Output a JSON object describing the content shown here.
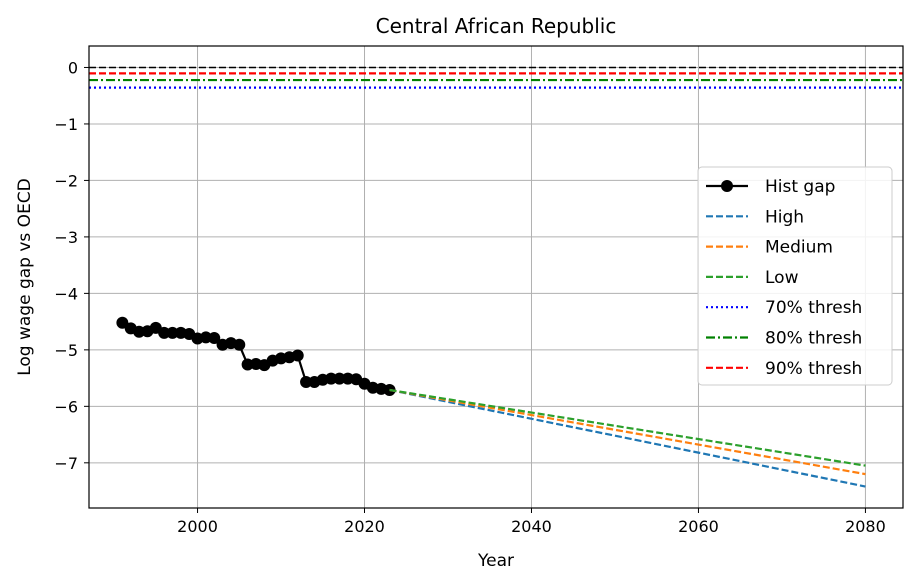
{
  "chart_data": {
    "type": "line",
    "title": "Central African Republic",
    "xlabel": "Year",
    "ylabel": "Log wage gap vs OECD",
    "xlim": [
      1987,
      2084.5
    ],
    "ylim": [
      -7.8,
      0.38
    ],
    "xticks": [
      2000,
      2020,
      2040,
      2060,
      2080
    ],
    "yticks": [
      0,
      -1,
      -2,
      -3,
      -4,
      -5,
      -6,
      -7
    ],
    "grid": true,
    "legend_position": "center-right",
    "series": [
      {
        "name": "Hist gap",
        "color": "#000000",
        "style": "solid-marker",
        "x": [
          1991,
          1992,
          1993,
          1994,
          1995,
          1996,
          1997,
          1998,
          1999,
          2000,
          2001,
          2002,
          2003,
          2004,
          2005,
          2006,
          2007,
          2008,
          2009,
          2010,
          2011,
          2012,
          2013,
          2014,
          2015,
          2016,
          2017,
          2018,
          2019,
          2020,
          2021,
          2022,
          2023
        ],
        "y": [
          -4.52,
          -4.62,
          -4.68,
          -4.67,
          -4.61,
          -4.7,
          -4.7,
          -4.7,
          -4.72,
          -4.8,
          -4.78,
          -4.79,
          -4.91,
          -4.88,
          -4.91,
          -5.26,
          -5.25,
          -5.27,
          -5.19,
          -5.15,
          -5.13,
          -5.1,
          -5.57,
          -5.57,
          -5.53,
          -5.51,
          -5.51,
          -5.51,
          -5.52,
          -5.6,
          -5.67,
          -5.69,
          -5.71
        ]
      },
      {
        "name": "High",
        "color": "#1f77b4",
        "style": "dashed",
        "x": [
          2023,
          2080
        ],
        "y": [
          -5.71,
          -7.42
        ]
      },
      {
        "name": "Medium",
        "color": "#ff7f0e",
        "style": "dashed",
        "x": [
          2023,
          2080
        ],
        "y": [
          -5.71,
          -7.2
        ]
      },
      {
        "name": "Low",
        "color": "#2ca02c",
        "style": "dashed",
        "x": [
          2023,
          2080
        ],
        "y": [
          -5.71,
          -7.05
        ]
      },
      {
        "name": "70% thresh",
        "color": "#0000ff",
        "style": "dotted",
        "hline": -0.357
      },
      {
        "name": "80% thresh",
        "color": "#008000",
        "style": "dashdot",
        "hline": -0.223
      },
      {
        "name": "90% thresh",
        "color": "#ff0000",
        "style": "dashed",
        "hline": -0.105
      }
    ],
    "reference_line": {
      "y": 0,
      "color": "#000000",
      "style": "dashed"
    }
  }
}
